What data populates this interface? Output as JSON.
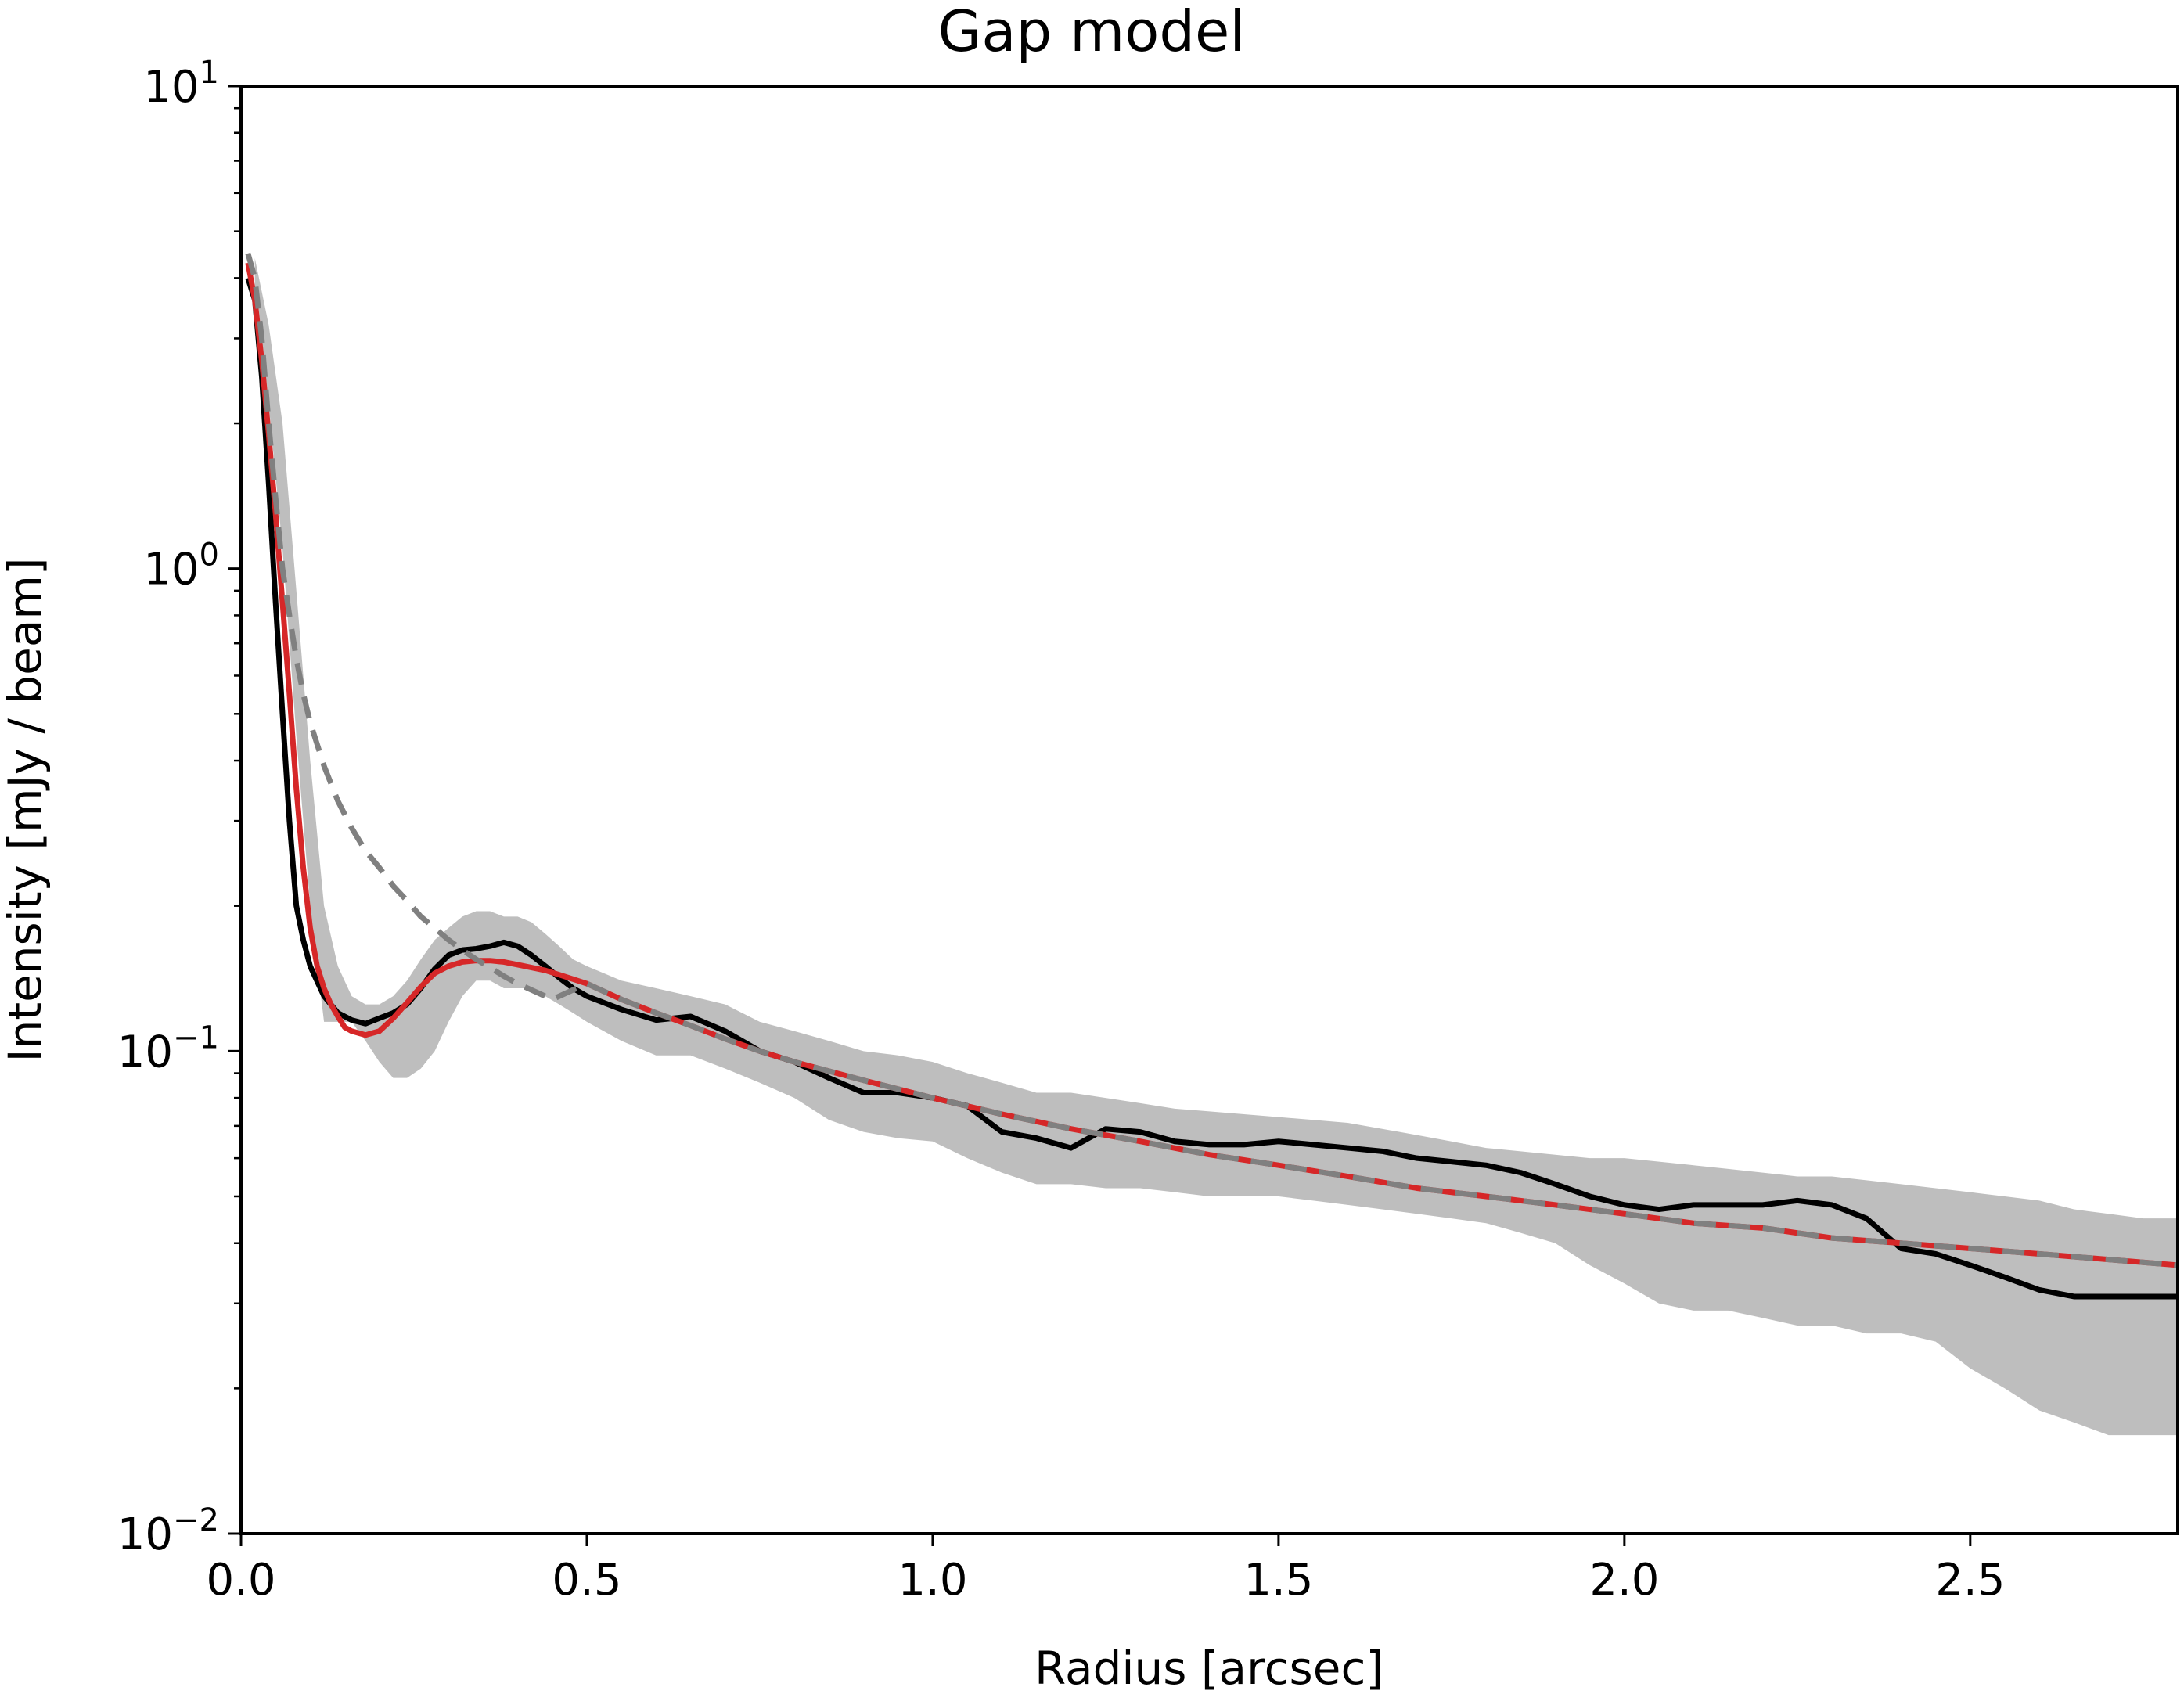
{
  "chart_data": {
    "type": "line",
    "title": "Gap model",
    "xlabel": "Radius [arcsec]",
    "ylabel": "Intensity [mJy / beam]",
    "xlim": [
      0.0,
      2.8
    ],
    "ylim": [
      0.01,
      10
    ],
    "yscale": "log",
    "grid": false,
    "xticks": [
      "0.0",
      "0.5",
      "1.0",
      "1.5",
      "2.0",
      "2.5"
    ],
    "xtick_values": [
      0.0,
      0.5,
      1.0,
      1.5,
      2.0,
      2.5
    ],
    "yticks": [
      {
        "value": 0.01,
        "base": "10",
        "exp": "−2"
      },
      {
        "value": 0.1,
        "base": "10",
        "exp": "−1"
      },
      {
        "value": 1,
        "base": "10",
        "exp": "0"
      },
      {
        "value": 10,
        "base": "10",
        "exp": "1"
      }
    ],
    "colors": {
      "data": "#000000",
      "band": "#bebebe",
      "gap_model": "#d62728",
      "smooth_model": "#808080"
    },
    "band": {
      "x": [
        0.02,
        0.04,
        0.06,
        0.08,
        0.1,
        0.12,
        0.14,
        0.16,
        0.18,
        0.2,
        0.22,
        0.24,
        0.26,
        0.28,
        0.3,
        0.32,
        0.34,
        0.36,
        0.38,
        0.4,
        0.42,
        0.44,
        0.46,
        0.48,
        0.5,
        0.55,
        0.6,
        0.65,
        0.7,
        0.75,
        0.8,
        0.85,
        0.9,
        0.95,
        1.0,
        1.05,
        1.1,
        1.15,
        1.2,
        1.25,
        1.3,
        1.35,
        1.4,
        1.45,
        1.5,
        1.55,
        1.6,
        1.65,
        1.7,
        1.75,
        1.8,
        1.85,
        1.9,
        1.95,
        2.0,
        2.05,
        2.1,
        2.15,
        2.2,
        2.25,
        2.3,
        2.35,
        2.4,
        2.45,
        2.5,
        2.55,
        2.6,
        2.65,
        2.7,
        2.75,
        2.8
      ],
      "upper": [
        4.4,
        3.2,
        2.0,
        0.9,
        0.4,
        0.2,
        0.15,
        0.13,
        0.125,
        0.125,
        0.13,
        0.14,
        0.155,
        0.17,
        0.18,
        0.19,
        0.195,
        0.195,
        0.19,
        0.19,
        0.185,
        0.175,
        0.165,
        0.155,
        0.15,
        0.14,
        0.135,
        0.13,
        0.125,
        0.115,
        0.11,
        0.105,
        0.1,
        0.098,
        0.095,
        0.09,
        0.086,
        0.082,
        0.082,
        0.08,
        0.078,
        0.076,
        0.075,
        0.074,
        0.073,
        0.072,
        0.071,
        0.069,
        0.067,
        0.065,
        0.063,
        0.062,
        0.061,
        0.06,
        0.06,
        0.059,
        0.058,
        0.057,
        0.056,
        0.055,
        0.055,
        0.054,
        0.053,
        0.052,
        0.051,
        0.05,
        0.049,
        0.047,
        0.046,
        0.045,
        0.045
      ],
      "lower": [
        3.6,
        2.2,
        1.1,
        0.45,
        0.2,
        0.115,
        0.115,
        0.115,
        0.105,
        0.095,
        0.088,
        0.088,
        0.092,
        0.1,
        0.115,
        0.13,
        0.14,
        0.14,
        0.135,
        0.135,
        0.135,
        0.13,
        0.125,
        0.12,
        0.115,
        0.105,
        0.098,
        0.098,
        0.092,
        0.086,
        0.08,
        0.072,
        0.068,
        0.066,
        0.065,
        0.06,
        0.056,
        0.053,
        0.053,
        0.052,
        0.052,
        0.051,
        0.05,
        0.05,
        0.05,
        0.049,
        0.048,
        0.047,
        0.046,
        0.045,
        0.044,
        0.042,
        0.04,
        0.036,
        0.033,
        0.03,
        0.029,
        0.029,
        0.028,
        0.027,
        0.027,
        0.026,
        0.026,
        0.025,
        0.022,
        0.02,
        0.018,
        0.017,
        0.016,
        0.016,
        0.016
      ]
    },
    "series": [
      {
        "x": [
          0.01,
          0.02,
          0.03,
          0.04,
          0.05,
          0.06,
          0.07,
          0.08,
          0.09,
          0.1,
          0.12,
          0.14,
          0.16,
          0.18,
          0.2,
          0.22,
          0.24,
          0.26,
          0.28,
          0.3,
          0.32,
          0.34,
          0.36,
          0.38,
          0.4,
          0.42,
          0.44,
          0.46,
          0.48,
          0.5,
          0.55,
          0.6,
          0.65,
          0.7,
          0.75,
          0.8,
          0.85,
          0.9,
          0.95,
          1.0,
          1.05,
          1.1,
          1.15,
          1.2,
          1.25,
          1.3,
          1.35,
          1.4,
          1.45,
          1.5,
          1.55,
          1.6,
          1.65,
          1.7,
          1.75,
          1.8,
          1.85,
          1.9,
          1.95,
          2.0,
          2.05,
          2.1,
          2.15,
          2.2,
          2.25,
          2.3,
          2.35,
          2.4,
          2.45,
          2.5,
          2.55,
          2.6,
          2.65,
          2.7,
          2.75,
          2.8
        ],
        "values": [
          4.0,
          3.6,
          2.5,
          1.5,
          0.85,
          0.5,
          0.3,
          0.2,
          0.17,
          0.15,
          0.13,
          0.12,
          0.116,
          0.114,
          0.117,
          0.12,
          0.125,
          0.135,
          0.148,
          0.158,
          0.162,
          0.163,
          0.165,
          0.168,
          0.165,
          0.158,
          0.15,
          0.142,
          0.135,
          0.13,
          0.122,
          0.116,
          0.118,
          0.11,
          0.1,
          0.095,
          0.088,
          0.082,
          0.082,
          0.08,
          0.077,
          0.068,
          0.066,
          0.063,
          0.069,
          0.068,
          0.065,
          0.064,
          0.064,
          0.065,
          0.064,
          0.063,
          0.062,
          0.06,
          0.059,
          0.058,
          0.056,
          0.053,
          0.05,
          0.048,
          0.047,
          0.048,
          0.048,
          0.048,
          0.049,
          0.048,
          0.045,
          0.039,
          0.038,
          0.036,
          0.034,
          0.032,
          0.031,
          0.031,
          0.031,
          0.031
        ]
      },
      {
        "x": [
          0.01,
          0.02,
          0.03,
          0.04,
          0.05,
          0.06,
          0.07,
          0.08,
          0.09,
          0.1,
          0.11,
          0.12,
          0.13,
          0.14,
          0.15,
          0.16,
          0.18,
          0.2,
          0.22,
          0.24,
          0.26,
          0.28,
          0.3,
          0.32,
          0.34,
          0.36,
          0.38,
          0.4,
          0.42,
          0.44,
          0.46,
          0.48,
          0.5,
          0.55,
          0.6,
          0.65,
          0.7,
          0.75,
          0.8,
          0.9,
          1.0,
          1.1,
          1.2,
          1.3,
          1.4,
          1.5,
          1.6,
          1.7,
          1.8,
          1.9,
          2.0,
          2.1,
          2.2,
          2.3,
          2.4,
          2.5,
          2.6,
          2.7,
          2.8
        ],
        "values": [
          4.3,
          3.6,
          2.7,
          1.9,
          1.3,
          0.85,
          0.55,
          0.35,
          0.24,
          0.18,
          0.15,
          0.135,
          0.125,
          0.118,
          0.112,
          0.11,
          0.108,
          0.11,
          0.117,
          0.126,
          0.136,
          0.145,
          0.15,
          0.153,
          0.154,
          0.154,
          0.153,
          0.151,
          0.149,
          0.147,
          0.144,
          0.141,
          0.138,
          0.128,
          0.12,
          0.113,
          0.106,
          0.1,
          0.095,
          0.087,
          0.08,
          0.074,
          0.069,
          0.065,
          0.061,
          0.058,
          0.055,
          0.052,
          0.05,
          0.048,
          0.046,
          0.044,
          0.043,
          0.041,
          0.04,
          0.039,
          0.038,
          0.037,
          0.036
        ]
      },
      {
        "x": [
          0.01,
          0.02,
          0.03,
          0.04,
          0.05,
          0.06,
          0.07,
          0.08,
          0.09,
          0.1,
          0.12,
          0.14,
          0.16,
          0.18,
          0.2,
          0.22,
          0.24,
          0.26,
          0.28,
          0.3,
          0.32,
          0.34,
          0.36,
          0.38,
          0.4,
          0.45,
          0.5,
          0.55,
          0.6,
          0.65,
          0.7,
          0.75,
          0.8,
          0.9,
          1.0,
          1.1,
          1.2,
          1.3,
          1.4,
          1.5,
          1.6,
          1.7,
          1.8,
          1.9,
          2.0,
          2.1,
          2.2,
          2.3,
          2.4,
          2.5,
          2.6,
          2.7,
          2.8
        ],
        "values": [
          4.5,
          4.0,
          3.0,
          2.0,
          1.4,
          1.0,
          0.8,
          0.65,
          0.55,
          0.48,
          0.39,
          0.33,
          0.29,
          0.26,
          0.24,
          0.22,
          0.205,
          0.19,
          0.18,
          0.17,
          0.162,
          0.155,
          0.149,
          0.143,
          0.138,
          0.128,
          0.138,
          0.128,
          0.12,
          0.113,
          0.106,
          0.1,
          0.095,
          0.087,
          0.08,
          0.074,
          0.069,
          0.065,
          0.061,
          0.058,
          0.055,
          0.052,
          0.05,
          0.048,
          0.046,
          0.044,
          0.043,
          0.041,
          0.04,
          0.039,
          0.038,
          0.037,
          0.036
        ]
      }
    ]
  }
}
